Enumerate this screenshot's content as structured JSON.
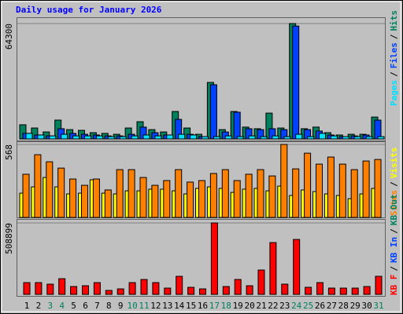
{
  "chart_data": [
    {
      "type": "bar",
      "title": "Daily usage for January 2026",
      "ylim": [
        0,
        64300
      ],
      "yticks": [
        64300
      ],
      "series": [
        {
          "name": "Hits",
          "color": "#00805c",
          "values": [
            7900,
            6100,
            3900,
            10500,
            5200,
            4800,
            3500,
            3100,
            2600,
            6100,
            9600,
            5200,
            3900,
            15300,
            6100,
            2600,
            31500,
            5200,
            15300,
            6600,
            5700,
            14400,
            6100,
            64300,
            5700,
            6600,
            3500,
            2200,
            2600,
            2600,
            12200
          ]
        },
        {
          "name": "Files",
          "color": "#0040ff",
          "values": [
            3100,
            2200,
            1700,
            5700,
            3100,
            2600,
            2200,
            1700,
            1700,
            2600,
            6600,
            3500,
            2200,
            10900,
            2600,
            1300,
            30200,
            3900,
            14900,
            5700,
            5200,
            5700,
            5200,
            62900,
            5200,
            4400,
            2200,
            1300,
            1700,
            2200,
            10500
          ]
        },
        {
          "name": "Pages",
          "color": "#00e0ff",
          "values": [
            3100,
            2200,
            1700,
            2600,
            1700,
            1700,
            1700,
            1300,
            1300,
            1700,
            2200,
            1700,
            2200,
            2600,
            2200,
            1300,
            1300,
            1700,
            1300,
            1700,
            1300,
            1700,
            1300,
            2600,
            1300,
            3100,
            1700,
            1300,
            1300,
            1300,
            1300
          ]
        }
      ],
      "legend_separator": "/"
    },
    {
      "type": "bar",
      "ylim": [
        0,
        568
      ],
      "yticks": [
        568
      ],
      "series": [
        {
          "name": "Visits",
          "color": "#ffff00",
          "values": [
            189,
            238,
            311,
            238,
            183,
            189,
            293,
            189,
            183,
            207,
            207,
            220,
            220,
            207,
            183,
            226,
            238,
            226,
            195,
            220,
            226,
            207,
            244,
            171,
            214,
            201,
            183,
            171,
            146,
            183,
            226
          ]
        },
        {
          "name": "Sites",
          "color": "#ff8000",
          "values": [
            336,
            488,
            433,
            384,
            299,
            250,
            299,
            214,
            372,
            372,
            311,
            250,
            287,
            372,
            275,
            287,
            342,
            372,
            287,
            336,
            372,
            323,
            568,
            378,
            500,
            415,
            470,
            415,
            372,
            439,
            451
          ]
        }
      ],
      "legend_separator": "/"
    },
    {
      "type": "bar",
      "ylim": [
        0,
        508899
      ],
      "yticks": [
        508899
      ],
      "categories": [
        1,
        2,
        3,
        4,
        5,
        6,
        7,
        8,
        9,
        10,
        11,
        12,
        13,
        14,
        15,
        16,
        17,
        18,
        19,
        20,
        21,
        22,
        23,
        24,
        25,
        26,
        27,
        28,
        29,
        30,
        31
      ],
      "label_colors": [
        "#000000",
        "#000000",
        "#00805c",
        "#00805c",
        "#000000",
        "#000000",
        "#000000",
        "#000000",
        "#000000",
        "#00805c",
        "#00805c",
        "#000000",
        "#000000",
        "#000000",
        "#000000",
        "#000000",
        "#00805c",
        "#00805c",
        "#000000",
        "#000000",
        "#000000",
        "#000000",
        "#000000",
        "#00805c",
        "#00805c",
        "#000000",
        "#000000",
        "#000000",
        "#000000",
        "#000000",
        "#00805c"
      ],
      "series": [
        {
          "name": "KB F",
          "color": "#ff0000",
          "values": [
            83900,
            83900,
            72700,
            111800,
            55900,
            61500,
            83900,
            28000,
            39100,
            83900,
            106200,
            83900,
            44700,
            128600,
            50300,
            39100,
            508899,
            55900,
            106200,
            61500,
            173400,
            369100,
            72700,
            391400,
            50300,
            83900,
            44700,
            44700,
            44700,
            55900,
            128600
          ]
        }
      ],
      "legend_only": [
        {
          "name": "KB In",
          "color": "#0040ff"
        },
        {
          "name": "KB Out",
          "color": "#00805c"
        }
      ],
      "legend_separator": "/"
    }
  ]
}
